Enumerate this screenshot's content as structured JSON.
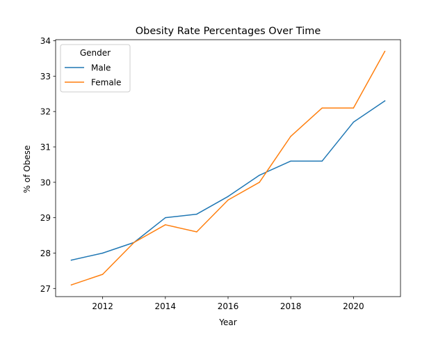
{
  "chart_data": {
    "type": "line",
    "title": "Obesity Rate Percentages Over Time",
    "xlabel": "Year",
    "ylabel": "% of Obese",
    "x": [
      2011,
      2012,
      2013,
      2014,
      2015,
      2016,
      2017,
      2018,
      2019,
      2020,
      2021
    ],
    "series": [
      {
        "name": "Male",
        "color": "#1f77b4",
        "values": [
          27.8,
          28.0,
          28.3,
          29.0,
          29.1,
          29.6,
          30.2,
          30.6,
          30.6,
          31.7,
          32.3
        ]
      },
      {
        "name": "Female",
        "color": "#ff7f0e",
        "values": [
          27.1,
          27.4,
          28.3,
          28.8,
          28.6,
          29.5,
          30.0,
          31.3,
          32.1,
          32.1,
          33.7
        ]
      }
    ],
    "xlim": [
      2010.5,
      2021.5
    ],
    "ylim": [
      26.77,
      34.03
    ],
    "xticks": [
      2012,
      2014,
      2016,
      2018,
      2020
    ],
    "yticks": [
      27,
      28,
      29,
      30,
      31,
      32,
      33,
      34
    ],
    "legend": {
      "title": "Gender",
      "placement": "top-left"
    },
    "grid": false
  }
}
